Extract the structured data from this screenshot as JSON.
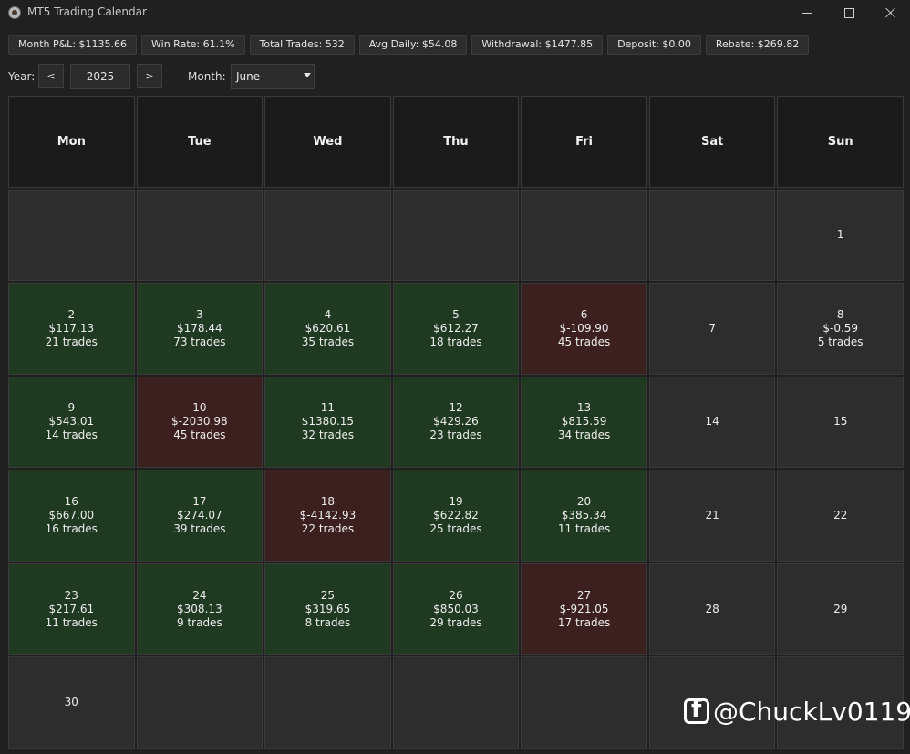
{
  "window": {
    "title": "MT5 Trading Calendar"
  },
  "stats": [
    "Month P&L: $1135.66",
    "Win Rate: 61.1%",
    "Total Trades: 532",
    "Avg Daily: $54.08",
    "Withdrawal: $1477.85",
    "Deposit: $0.00",
    "Rebate: $269.82"
  ],
  "controls": {
    "year_label": "Year:",
    "prev_label": "<",
    "year_value": "2025",
    "next_label": ">",
    "month_label": "Month:",
    "month_value": "June"
  },
  "weekdays": [
    "Mon",
    "Tue",
    "Wed",
    "Thu",
    "Fri",
    "Sat",
    "Sun"
  ],
  "colors": {
    "profit": "#1f3a21",
    "loss": "#3c1f1f",
    "neutral": "#2d2d2d"
  },
  "days": [
    {
      "day": "",
      "pnl": "",
      "trades": "",
      "status": "empty"
    },
    {
      "day": "",
      "pnl": "",
      "trades": "",
      "status": "empty"
    },
    {
      "day": "",
      "pnl": "",
      "trades": "",
      "status": "empty"
    },
    {
      "day": "",
      "pnl": "",
      "trades": "",
      "status": "empty"
    },
    {
      "day": "",
      "pnl": "",
      "trades": "",
      "status": "empty"
    },
    {
      "day": "",
      "pnl": "",
      "trades": "",
      "status": "empty"
    },
    {
      "day": "1",
      "pnl": "",
      "trades": "",
      "status": "neutral"
    },
    {
      "day": "2",
      "pnl": "$117.13",
      "trades": "21 trades",
      "status": "green"
    },
    {
      "day": "3",
      "pnl": "$178.44",
      "trades": "73 trades",
      "status": "green"
    },
    {
      "day": "4",
      "pnl": "$620.61",
      "trades": "35 trades",
      "status": "green"
    },
    {
      "day": "5",
      "pnl": "$612.27",
      "trades": "18 trades",
      "status": "green"
    },
    {
      "day": "6",
      "pnl": "$-109.90",
      "trades": "45 trades",
      "status": "red"
    },
    {
      "day": "7",
      "pnl": "",
      "trades": "",
      "status": "neutral"
    },
    {
      "day": "8",
      "pnl": "$-0.59",
      "trades": "5 trades",
      "status": "neutral"
    },
    {
      "day": "9",
      "pnl": "$543.01",
      "trades": "14 trades",
      "status": "green"
    },
    {
      "day": "10",
      "pnl": "$-2030.98",
      "trades": "45 trades",
      "status": "red"
    },
    {
      "day": "11",
      "pnl": "$1380.15",
      "trades": "32 trades",
      "status": "green"
    },
    {
      "day": "12",
      "pnl": "$429.26",
      "trades": "23 trades",
      "status": "green"
    },
    {
      "day": "13",
      "pnl": "$815.59",
      "trades": "34 trades",
      "status": "green"
    },
    {
      "day": "14",
      "pnl": "",
      "trades": "",
      "status": "neutral"
    },
    {
      "day": "15",
      "pnl": "",
      "trades": "",
      "status": "neutral"
    },
    {
      "day": "16",
      "pnl": "$667.00",
      "trades": "16 trades",
      "status": "green"
    },
    {
      "day": "17",
      "pnl": "$274.07",
      "trades": "39 trades",
      "status": "green"
    },
    {
      "day": "18",
      "pnl": "$-4142.93",
      "trades": "22 trades",
      "status": "red"
    },
    {
      "day": "19",
      "pnl": "$622.82",
      "trades": "25 trades",
      "status": "green"
    },
    {
      "day": "20",
      "pnl": "$385.34",
      "trades": "11 trades",
      "status": "green"
    },
    {
      "day": "21",
      "pnl": "",
      "trades": "",
      "status": "neutral"
    },
    {
      "day": "22",
      "pnl": "",
      "trades": "",
      "status": "neutral"
    },
    {
      "day": "23",
      "pnl": "$217.61",
      "trades": "11 trades",
      "status": "green"
    },
    {
      "day": "24",
      "pnl": "$308.13",
      "trades": "9 trades",
      "status": "green"
    },
    {
      "day": "25",
      "pnl": "$319.65",
      "trades": "8 trades",
      "status": "green"
    },
    {
      "day": "26",
      "pnl": "$850.03",
      "trades": "29 trades",
      "status": "green"
    },
    {
      "day": "27",
      "pnl": "$-921.05",
      "trades": "17 trades",
      "status": "red"
    },
    {
      "day": "28",
      "pnl": "",
      "trades": "",
      "status": "neutral"
    },
    {
      "day": "29",
      "pnl": "",
      "trades": "",
      "status": "neutral"
    },
    {
      "day": "30",
      "pnl": "",
      "trades": "",
      "status": "neutral"
    },
    {
      "day": "",
      "pnl": "",
      "trades": "",
      "status": "empty"
    },
    {
      "day": "",
      "pnl": "",
      "trades": "",
      "status": "empty"
    },
    {
      "day": "",
      "pnl": "",
      "trades": "",
      "status": "empty"
    },
    {
      "day": "",
      "pnl": "",
      "trades": "",
      "status": "empty"
    },
    {
      "day": "",
      "pnl": "",
      "trades": "",
      "status": "empty"
    },
    {
      "day": "",
      "pnl": "",
      "trades": "",
      "status": "empty"
    }
  ],
  "watermark": {
    "icon": "facebook-icon",
    "text": "@ChuckLv0119"
  }
}
